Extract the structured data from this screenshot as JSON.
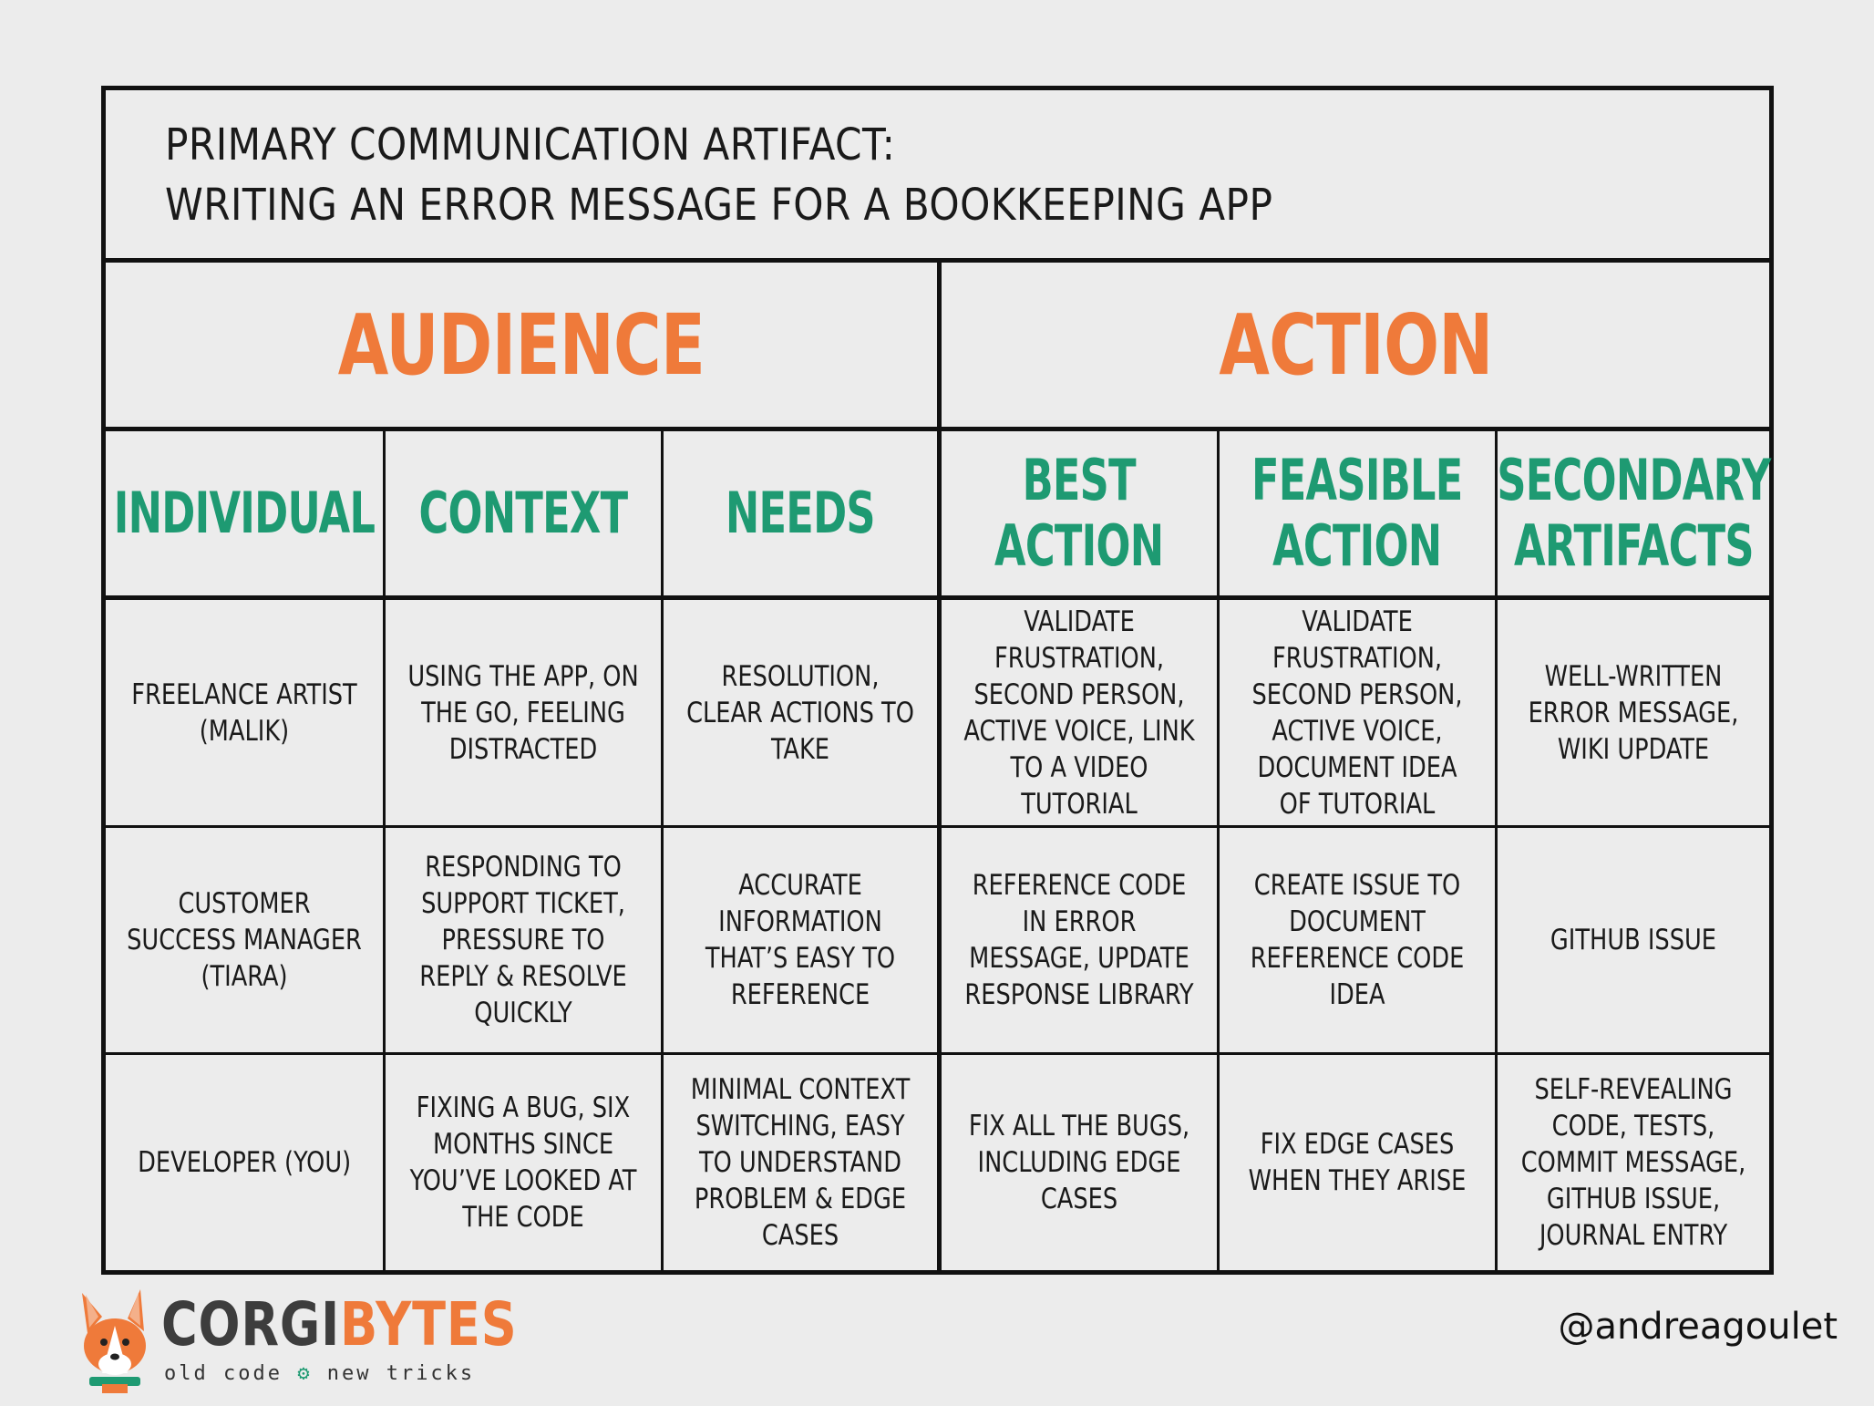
{
  "title": {
    "line1": "PRIMARY COMMUNICATION ARTIFACT:",
    "line2": "WRITING AN ERROR MESSAGE FOR A BOOKKEEPING APP"
  },
  "groups": {
    "audience": "AUDIENCE",
    "action": "ACTION"
  },
  "columns": {
    "individual": "INDIVIDUAL",
    "context": "CONTEXT",
    "needs": "NEEDS",
    "best_action": "BEST\nACTION",
    "feasible_action": "FEASIBLE\nACTION",
    "secondary_artifacts": "SECONDARY\nARTIFACTS"
  },
  "rows": [
    {
      "individual": "FREELANCE ARTIST (MALIK)",
      "context": "USING THE APP, ON THE GO, FEELING DISTRACTED",
      "needs": "RESOLUTION, CLEAR ACTIONS TO TAKE",
      "best_action": "VALIDATE FRUSTRATION, SECOND PERSON, ACTIVE VOICE, LINK TO A VIDEO TUTORIAL",
      "feasible_action": "VALIDATE FRUSTRATION, SECOND PERSON, ACTIVE VOICE, DOCUMENT IDEA OF TUTORIAL",
      "secondary_artifacts": "WELL-WRITTEN ERROR MESSAGE, WIKI UPDATE"
    },
    {
      "individual": "CUSTOMER SUCCESS MANAGER (TIARA)",
      "context": "RESPONDING TO SUPPORT TICKET, PRESSURE TO REPLY & RESOLVE QUICKLY",
      "needs": "ACCURATE INFORMATION THAT’S EASY TO REFERENCE",
      "best_action": "REFERENCE CODE IN ERROR MESSAGE, UPDATE RESPONSE LIBRARY",
      "feasible_action": "CREATE ISSUE TO DOCUMENT REFERENCE CODE IDEA",
      "secondary_artifacts": "GITHUB ISSUE"
    },
    {
      "individual": "DEVELOPER (YOU)",
      "context": "FIXING A BUG, SIX MONTHS SINCE YOU’VE LOOKED AT THE CODE",
      "needs": "MINIMAL CONTEXT SWITCHING, EASY TO UNDERSTAND PROBLEM & EDGE CASES",
      "best_action": "FIX ALL THE BUGS, INCLUDING EDGE CASES",
      "feasible_action": "FIX EDGE CASES WHEN THEY ARISE",
      "secondary_artifacts": "SELF-REVEALING CODE, TESTS, COMMIT MESSAGE, GITHUB ISSUE, JOURNAL ENTRY"
    }
  ],
  "footer": {
    "logo_part1": "CORGI",
    "logo_part2": "BYTES",
    "tagline_left": "old code",
    "tagline_right": "new tricks",
    "handle": "@andreagoulet"
  },
  "colors": {
    "group_heading": "#ef7a3a",
    "column_heading": "#1e9a72",
    "background": "#ececec",
    "border": "#111111"
  },
  "icons": [
    "corgi-logo-icon",
    "gear-icon"
  ]
}
